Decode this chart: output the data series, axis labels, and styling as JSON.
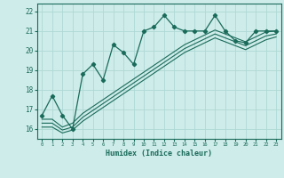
{
  "xlabel": "Humidex (Indice chaleur)",
  "bg_color": "#ceecea",
  "grid_color": "#aed8d4",
  "line_color": "#1a6b5a",
  "xlim": [
    -0.5,
    23.5
  ],
  "ylim": [
    15.5,
    22.4
  ],
  "yticks": [
    16,
    17,
    18,
    19,
    20,
    21,
    22
  ],
  "xticks": [
    0,
    1,
    2,
    3,
    4,
    5,
    6,
    7,
    8,
    9,
    10,
    11,
    12,
    13,
    14,
    15,
    16,
    17,
    18,
    19,
    20,
    21,
    22,
    23
  ],
  "main_y": [
    16.7,
    17.7,
    16.7,
    16.0,
    18.8,
    19.3,
    18.5,
    20.3,
    19.9,
    19.3,
    21.0,
    21.2,
    21.8,
    21.2,
    21.0,
    21.0,
    21.0,
    21.8,
    21.0,
    20.5,
    20.4,
    21.0,
    21.0,
    21.0
  ],
  "line1_y": [
    16.5,
    16.5,
    16.1,
    16.3,
    16.8,
    17.15,
    17.5,
    17.85,
    18.2,
    18.55,
    18.9,
    19.25,
    19.6,
    19.95,
    20.3,
    20.55,
    20.8,
    21.05,
    20.85,
    20.65,
    20.45,
    20.7,
    20.95,
    21.0
  ],
  "line2_y": [
    16.3,
    16.3,
    15.95,
    16.1,
    16.6,
    16.95,
    17.3,
    17.65,
    18.0,
    18.35,
    18.7,
    19.05,
    19.4,
    19.75,
    20.1,
    20.35,
    20.6,
    20.85,
    20.65,
    20.45,
    20.25,
    20.5,
    20.75,
    20.85
  ],
  "line3_y": [
    16.1,
    16.1,
    15.8,
    15.95,
    16.4,
    16.75,
    17.1,
    17.45,
    17.8,
    18.15,
    18.5,
    18.85,
    19.2,
    19.55,
    19.9,
    20.15,
    20.4,
    20.65,
    20.45,
    20.25,
    20.05,
    20.3,
    20.55,
    20.7
  ]
}
